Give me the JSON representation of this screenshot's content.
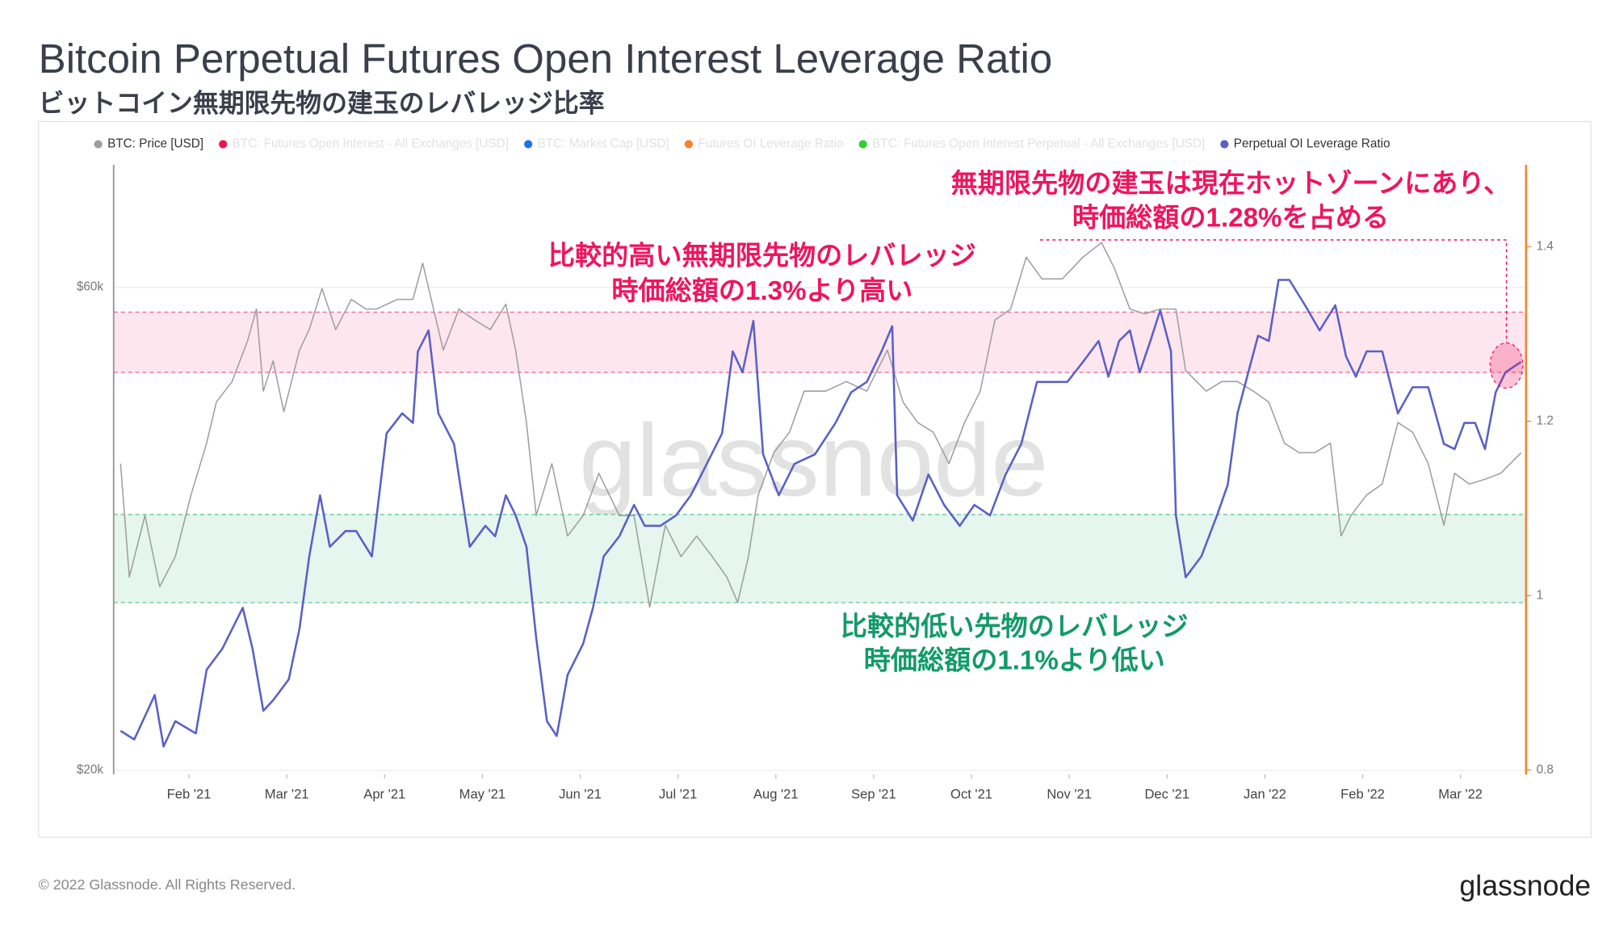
{
  "chart_data": {
    "type": "line",
    "title": "Bitcoin Perpetual Futures Open Interest Leverage Ratio",
    "subtitle": "ビットコイン無期限先物の建玉のレバレッジ比率",
    "watermark": "glassnode",
    "footer": "© 2022 Glassnode. All Rights Reserved.",
    "logo": "glassnode",
    "xlim": [
      -0.77,
      13.67
    ],
    "xticks": [
      {
        "value": 0,
        "label": "Feb '21"
      },
      {
        "value": 1,
        "label": "Mar '21"
      },
      {
        "value": 2,
        "label": "Apr '21"
      },
      {
        "value": 3,
        "label": "May '21"
      },
      {
        "value": 4,
        "label": "Jun '21"
      },
      {
        "value": 5,
        "label": "Jul '21"
      },
      {
        "value": 6,
        "label": "Aug '21"
      },
      {
        "value": 7,
        "label": "Sep '21"
      },
      {
        "value": 8,
        "label": "Oct '21"
      },
      {
        "value": 9,
        "label": "Nov '21"
      },
      {
        "value": 10,
        "label": "Dec '21"
      },
      {
        "value": 11,
        "label": "Jan '22"
      },
      {
        "value": 12,
        "label": "Feb '22"
      },
      {
        "value": 13,
        "label": "Mar '22"
      }
    ],
    "ylim": [
      19660,
      70150
    ],
    "yticks": [
      {
        "value": 20000,
        "label": "$20k"
      },
      {
        "value": 60000,
        "label": "$60k"
      }
    ],
    "y2lim": [
      0.795,
      1.494
    ],
    "y2ticks": [
      0.8,
      1,
      1.2,
      1.4
    ],
    "grid": true,
    "legend_position": "top",
    "bands": [
      {
        "from": 1.256,
        "to": 1.325,
        "color": "#fde6ee",
        "border": "#ee6f9b"
      },
      {
        "from": 0.992,
        "to": 1.093,
        "color": "#e4f6ee",
        "border": "#63c49a"
      }
    ],
    "annotations": [
      {
        "lines": [
          "比較的高い無期限先物のレバレッジ",
          "時価総額の1.3%より高い"
        ],
        "color": "#f0145f"
      },
      {
        "lines": [
          "無期限先物の建玉は現在ホットゾーンにあり、",
          "時価総額の1.28%を占める"
        ],
        "color": "#f0145f"
      },
      {
        "lines": [
          "比較的低い先物のレバレッジ",
          "時価総額の1.1%より低い"
        ],
        "color": "#129a68"
      }
    ],
    "series": [
      {
        "name": "BTC: Price [USD]",
        "color": "#9e9e9e",
        "axis": "y",
        "active": true,
        "x": [
          -0.7,
          -0.61,
          -0.45,
          -0.3,
          -0.14,
          0.02,
          0.18,
          0.28,
          0.44,
          0.6,
          0.69,
          0.76,
          0.86,
          0.97,
          1.13,
          1.23,
          1.36,
          1.5,
          1.66,
          1.81,
          1.92,
          2.13,
          2.29,
          2.39,
          2.5,
          2.6,
          2.76,
          2.92,
          3.08,
          3.24,
          3.34,
          3.45,
          3.55,
          3.71,
          3.87,
          4.03,
          4.19,
          4.4,
          4.55,
          4.71,
          4.87,
          5.03,
          5.19,
          5.35,
          5.5,
          5.61,
          5.72,
          5.82,
          5.98,
          6.14,
          6.29,
          6.51,
          6.72,
          6.93,
          7.14,
          7.3,
          7.45,
          7.61,
          7.77,
          7.93,
          8.09,
          8.24,
          8.4,
          8.56,
          8.72,
          8.93,
          9.14,
          9.33,
          9.46,
          9.62,
          9.77,
          9.93,
          10.09,
          10.19,
          10.4,
          10.56,
          10.72,
          10.88,
          11.04,
          11.2,
          11.35,
          11.51,
          11.67,
          11.78,
          11.88,
          12.04,
          12.2,
          12.36,
          12.51,
          12.67,
          12.83,
          12.94,
          13.09,
          13.25,
          13.41,
          13.62
        ],
        "values": [
          45400,
          36000,
          41100,
          35200,
          37700,
          42800,
          47100,
          50500,
          52200,
          55600,
          58200,
          51400,
          53900,
          49700,
          54800,
          56500,
          59900,
          56500,
          59000,
          58200,
          58200,
          59000,
          59000,
          62000,
          58200,
          54800,
          58200,
          57300,
          56500,
          58600,
          54800,
          48800,
          41100,
          45400,
          39400,
          41100,
          44600,
          41100,
          41100,
          33500,
          40300,
          37700,
          39400,
          37700,
          36000,
          33900,
          37700,
          42800,
          46300,
          48000,
          51400,
          51400,
          52200,
          51400,
          54800,
          50500,
          48800,
          48000,
          45400,
          48800,
          51400,
          57300,
          58200,
          62500,
          60700,
          60700,
          62500,
          63700,
          61600,
          58200,
          57800,
          58200,
          58200,
          53100,
          51400,
          52200,
          52200,
          51400,
          50500,
          47100,
          46300,
          46300,
          47100,
          39400,
          41100,
          42800,
          43700,
          48800,
          48000,
          45400,
          40300,
          44600,
          43700,
          44100,
          44600,
          46300
        ]
      },
      {
        "name": "BTC: Futures Open Interest - All Exchanges [USD]",
        "color": "#f0134d",
        "active": false
      },
      {
        "name": "BTC: Market Cap [USD]",
        "color": "#1f6ff3",
        "active": false
      },
      {
        "name": "Futures OI Leverage Ratio",
        "color": "#f58231",
        "active": false
      },
      {
        "name": "BTC: Futures Open Interest Perpetual - All Exchanges [USD]",
        "color": "#2fcf2f",
        "active": false
      },
      {
        "name": "Perpetual OI Leverage Ratio",
        "color": "#5b5fc7",
        "axis": "y2",
        "active": true,
        "x": [
          -0.7,
          -0.56,
          -0.35,
          -0.26,
          -0.14,
          0.07,
          0.18,
          0.34,
          0.55,
          0.65,
          0.76,
          0.86,
          1.02,
          1.13,
          1.23,
          1.34,
          1.44,
          1.6,
          1.71,
          1.87,
          2.02,
          2.18,
          2.29,
          2.34,
          2.45,
          2.55,
          2.71,
          2.87,
          3.03,
          3.13,
          3.24,
          3.34,
          3.45,
          3.55,
          3.66,
          3.76,
          3.87,
          4.03,
          4.13,
          4.24,
          4.4,
          4.55,
          4.66,
          4.82,
          4.98,
          5.13,
          5.24,
          5.45,
          5.56,
          5.66,
          5.77,
          5.87,
          6.03,
          6.19,
          6.4,
          6.61,
          6.77,
          6.93,
          7.08,
          7.19,
          7.24,
          7.4,
          7.56,
          7.72,
          7.88,
          8.03,
          8.19,
          8.35,
          8.51,
          8.67,
          8.82,
          8.98,
          9.14,
          9.3,
          9.4,
          9.51,
          9.62,
          9.72,
          9.83,
          9.93,
          10.04,
          10.09,
          10.19,
          10.35,
          10.51,
          10.62,
          10.72,
          10.83,
          10.93,
          11.04,
          11.14,
          11.25,
          11.41,
          11.56,
          11.72,
          11.83,
          11.93,
          12.04,
          12.2,
          12.36,
          12.51,
          12.67,
          12.83,
          12.94,
          13.04,
          13.15,
          13.25,
          13.36,
          13.46,
          13.62
        ],
        "values": [
          0.845,
          0.835,
          0.886,
          0.827,
          0.856,
          0.842,
          0.915,
          0.939,
          0.986,
          0.939,
          0.868,
          0.88,
          0.904,
          0.962,
          1.045,
          1.115,
          1.056,
          1.074,
          1.074,
          1.045,
          1.186,
          1.209,
          1.198,
          1.28,
          1.304,
          1.209,
          1.174,
          1.056,
          1.08,
          1.068,
          1.115,
          1.092,
          1.056,
          0.951,
          0.856,
          0.839,
          0.909,
          0.945,
          0.986,
          1.045,
          1.068,
          1.104,
          1.08,
          1.08,
          1.092,
          1.115,
          1.139,
          1.186,
          1.28,
          1.256,
          1.315,
          1.162,
          1.115,
          1.151,
          1.162,
          1.198,
          1.233,
          1.245,
          1.28,
          1.309,
          1.115,
          1.086,
          1.139,
          1.104,
          1.08,
          1.104,
          1.092,
          1.139,
          1.174,
          1.245,
          1.245,
          1.245,
          1.268,
          1.292,
          1.251,
          1.292,
          1.304,
          1.256,
          1.292,
          1.327,
          1.28,
          1.092,
          1.021,
          1.045,
          1.092,
          1.127,
          1.209,
          1.256,
          1.298,
          1.292,
          1.362,
          1.362,
          1.333,
          1.304,
          1.333,
          1.274,
          1.251,
          1.28,
          1.28,
          1.209,
          1.239,
          1.239,
          1.174,
          1.168,
          1.198,
          1.198,
          1.168,
          1.233,
          1.256,
          1.268
        ]
      }
    ]
  }
}
